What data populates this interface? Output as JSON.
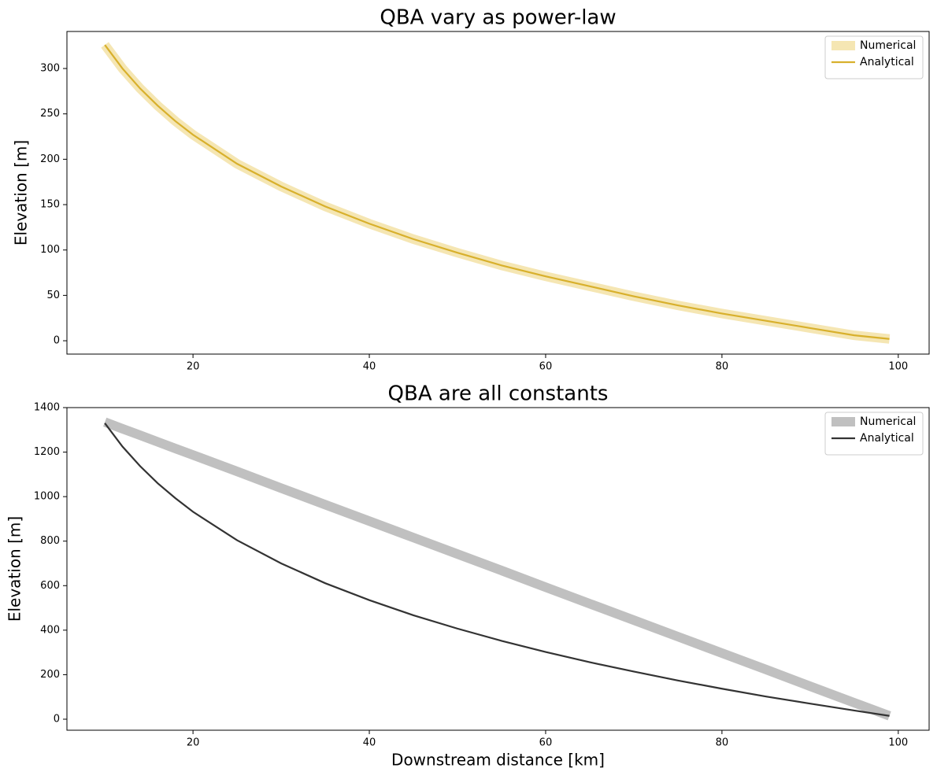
{
  "chart_data": [
    {
      "type": "line",
      "title": "QBA vary as power-law",
      "ylabel": "Elevation [m]",
      "x": [
        10,
        12,
        14,
        16,
        18,
        20,
        25,
        30,
        35,
        40,
        45,
        50,
        55,
        60,
        65,
        70,
        75,
        80,
        85,
        90,
        95,
        99
      ],
      "series": [
        {
          "name": "Numerical",
          "color": "#f5e6b3",
          "values": [
            326,
            300,
            278,
            259,
            242,
            227,
            195,
            170,
            148,
            129,
            112,
            97,
            83,
            71,
            60,
            49,
            39,
            30,
            22,
            14,
            6,
            2
          ]
        },
        {
          "name": "Analytical",
          "color": "#d8b02c",
          "values": [
            326,
            300,
            278,
            259,
            242,
            227,
            195,
            170,
            148,
            129,
            112,
            97,
            83,
            71,
            60,
            49,
            39,
            30,
            22,
            14,
            6,
            2
          ]
        }
      ],
      "xlim": [
        5.7,
        103.5
      ],
      "xticks": [
        20,
        40,
        60,
        80,
        100
      ],
      "ylim": [
        -14.7,
        340.8
      ],
      "yticks": [
        0,
        50,
        100,
        150,
        200,
        250,
        300
      ],
      "legend": "upper right"
    },
    {
      "type": "line",
      "title": "QBA are all constants",
      "ylabel": "Elevation [m]",
      "xlabel": "Downstream distance [km]",
      "x": [
        10,
        12,
        14,
        16,
        18,
        20,
        25,
        30,
        35,
        40,
        45,
        50,
        55,
        60,
        65,
        70,
        75,
        80,
        85,
        90,
        95,
        99
      ],
      "series": [
        {
          "name": "Numerical",
          "color": "#c0c0c0",
          "values": [
            1335,
            1305,
            1276,
            1246,
            1216,
            1187,
            1113,
            1038,
            964,
            890,
            816,
            742,
            668,
            593,
            519,
            445,
            371,
            297,
            223,
            148,
            74,
            15
          ]
        },
        {
          "name": "Analytical",
          "color": "#333333",
          "values": [
            1330,
            1225,
            1137,
            1060,
            993,
            932,
            804,
            700,
            611,
            535,
            467,
            407,
            352,
            302,
            256,
            214,
            174,
            137,
            102,
            70,
            39,
            15
          ]
        }
      ],
      "xlim": [
        5.7,
        103.5
      ],
      "xticks": [
        20,
        40,
        60,
        80,
        100
      ],
      "ylim": [
        -49.5,
        1400
      ],
      "yticks": [
        0,
        200,
        400,
        600,
        800,
        1000,
        1200,
        1400
      ],
      "legend": "upper right"
    }
  ]
}
